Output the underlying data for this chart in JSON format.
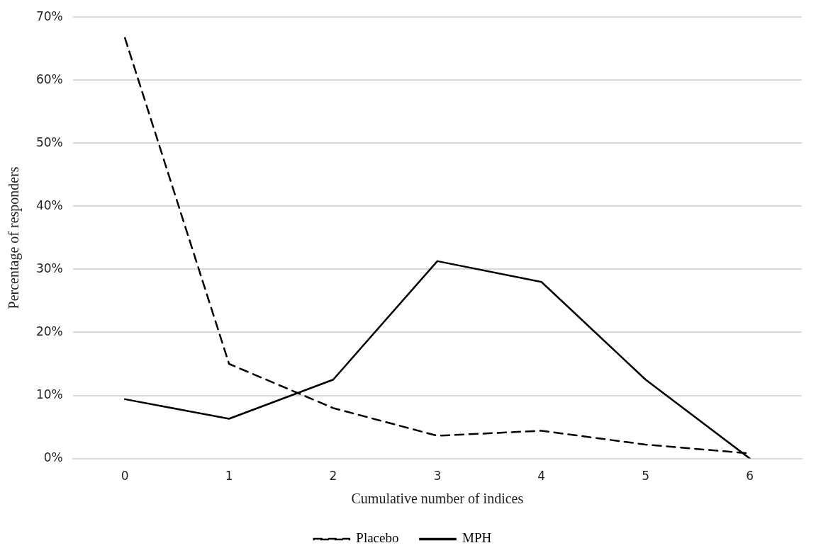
{
  "chart_data": {
    "type": "line",
    "xlabel": "Cumulative number of indices",
    "ylabel": "Percentage of responders",
    "categories": [
      "0",
      "1",
      "2",
      "3",
      "4",
      "5",
      "6"
    ],
    "series": [
      {
        "name": "Placebo",
        "color": "#000000",
        "line_style": "dashed",
        "values": [
          66.7,
          15,
          8,
          3.6,
          4.4,
          2.2,
          0.8
        ]
      },
      {
        "name": "MPH",
        "color": "#000000",
        "line_style": "solid",
        "values": [
          9.4,
          6.3,
          12.5,
          31.3,
          28,
          12.5,
          0
        ]
      }
    ],
    "ylim": [
      0,
      70
    ],
    "yticks": [
      {
        "value": 0,
        "label": "0%"
      },
      {
        "value": 10,
        "label": "10%"
      },
      {
        "value": 20,
        "label": "20%"
      },
      {
        "value": 30,
        "label": "30%"
      },
      {
        "value": 40,
        "label": "40%"
      },
      {
        "value": 50,
        "label": "50%"
      },
      {
        "value": 60,
        "label": "60%"
      },
      {
        "value": 70,
        "label": "70%"
      }
    ],
    "grid": "y",
    "legend": "bottom",
    "marker": "none"
  }
}
